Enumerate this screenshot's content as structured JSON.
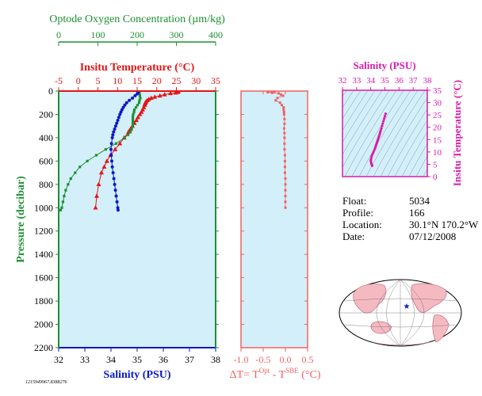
{
  "float_info": {
    "float_label": "Float:",
    "float_value": "5034",
    "profile_label": "Profile:",
    "profile_value": "166",
    "location_label": "Location:",
    "location_value": "30.1°N  170.2°W",
    "date_label": "Date:",
    "date_value": "07/12/2008"
  },
  "footnote": "1215949967.8388276",
  "colors": {
    "panel_bg": "#d3eff9",
    "temperature": "#e41414",
    "oxygen": "#1e9032",
    "salinity": "#0b1ac8",
    "delta_t": "#f26262",
    "ts": "#d81ba8",
    "land": "#f5b9c2"
  },
  "chart_data": [
    {
      "type": "scatter",
      "title": "",
      "ylabel": "Pressure (decibar)",
      "ylim": [
        0,
        2200
      ],
      "yticks": [
        0,
        200,
        400,
        600,
        800,
        1000,
        1200,
        1400,
        1600,
        1800,
        2000,
        2200
      ],
      "axes": {
        "oxygen": {
          "label": "Optode Oxygen Concentration (µm/kg)",
          "range": [
            0,
            400
          ],
          "ticks": [
            0,
            100,
            200,
            300,
            400
          ]
        },
        "temperature": {
          "label": "Insitu Temperature (°C)",
          "range": [
            -5,
            35
          ],
          "ticks": [
            -5,
            0,
            5,
            10,
            15,
            20,
            25,
            30,
            35
          ]
        },
        "salinity": {
          "label": "Salinity (PSU)",
          "range": [
            32,
            38
          ],
          "ticks": [
            32,
            33,
            34,
            35,
            36,
            37,
            38
          ]
        }
      },
      "series": [
        {
          "key": "temperature",
          "marker": "triangle",
          "pressure": [
            5,
            10,
            15,
            20,
            30,
            40,
            50,
            60,
            70,
            80,
            90,
            100,
            110,
            120,
            140,
            160,
            180,
            200,
            225,
            250,
            275,
            300,
            325,
            350,
            400,
            450,
            500,
            550,
            600,
            650,
            700,
            800,
            900,
            1000
          ],
          "values": [
            25.5,
            25.3,
            24.8,
            23.5,
            22.0,
            20.8,
            19.5,
            18.6,
            18.0,
            17.6,
            17.3,
            17.1,
            17.0,
            16.9,
            16.7,
            16.4,
            16.1,
            15.7,
            15.2,
            14.8,
            14.3,
            13.8,
            13.3,
            12.8,
            11.7,
            10.6,
            9.4,
            8.2,
            7.3,
            6.6,
            5.9,
            5.2,
            4.7,
            4.4
          ]
        },
        {
          "key": "oxygen",
          "marker": "square",
          "pressure": [
            5,
            20,
            40,
            60,
            80,
            100,
            120,
            140,
            160,
            180,
            200,
            220,
            240,
            260,
            280,
            300,
            325,
            350,
            375,
            400,
            450,
            500,
            550,
            600,
            650,
            700,
            750,
            800,
            850,
            900,
            950,
            1000,
            1020
          ],
          "values": [
            205,
            206,
            207,
            208,
            206,
            205,
            201,
            197,
            193,
            192,
            190,
            189,
            189,
            189,
            189,
            189,
            186,
            183,
            177,
            168,
            146,
            120,
            96,
            73,
            54,
            42,
            31,
            24,
            18,
            14,
            11,
            8,
            5
          ]
        },
        {
          "key": "salinity",
          "marker": "circle",
          "pressure": [
            5,
            15,
            25,
            40,
            60,
            80,
            100,
            120,
            140,
            160,
            180,
            200,
            225,
            250,
            275,
            300,
            325,
            350,
            375,
            400,
            450,
            500,
            550,
            600,
            650,
            700,
            750,
            800,
            850,
            900,
            950,
            1000,
            1020
          ],
          "values": [
            35.05,
            35.03,
            35.0,
            34.92,
            34.82,
            34.7,
            34.6,
            34.53,
            34.47,
            34.42,
            34.38,
            34.34,
            34.3,
            34.26,
            34.22,
            34.18,
            34.14,
            34.1,
            34.07,
            34.05,
            34.02,
            34.0,
            34.01,
            34.03,
            34.05,
            34.08,
            34.11,
            34.14,
            34.17,
            34.2,
            34.23,
            34.26,
            34.27
          ]
        }
      ]
    },
    {
      "type": "scatter",
      "xlabel": "ΔT= T",
      "xlabel_sup1": "Opt",
      "xlabel_mid": " - T",
      "xlabel_sup2": "SBE",
      "xlabel_tail": " (°C)",
      "xlim": [
        -1.0,
        0.5
      ],
      "xticks": [
        "-1.0",
        "-0.5",
        "0.0",
        "0.5"
      ],
      "ylim": [
        0,
        2200
      ],
      "pressure": [
        5,
        10,
        15,
        20,
        30,
        40,
        60,
        80,
        100,
        120,
        140,
        160,
        180,
        200,
        240,
        280,
        320,
        360,
        400,
        450,
        500,
        550,
        600,
        650,
        700,
        750,
        800,
        850,
        900,
        950,
        1000
      ],
      "values": [
        -0.25,
        -0.4,
        -0.3,
        -0.15,
        -0.1,
        -0.05,
        -0.18,
        -0.22,
        -0.12,
        -0.08,
        -0.04,
        -0.04,
        -0.03,
        -0.03,
        -0.02,
        -0.02,
        -0.03,
        -0.02,
        -0.02,
        -0.02,
        -0.02,
        -0.01,
        -0.01,
        -0.01,
        -0.01,
        0.0,
        0.0,
        0.0,
        0.0,
        0.0,
        0.0
      ]
    },
    {
      "type": "scatter",
      "xlabel": "Salinity (PSU)",
      "ylabel": "Insitu Temperature (°C)",
      "xlim": [
        32,
        38
      ],
      "ylim": [
        0,
        35
      ],
      "xticks": [
        32,
        33,
        34,
        35,
        36,
        37,
        38
      ],
      "yticks": [
        0,
        5,
        10,
        15,
        20,
        25,
        30,
        35
      ],
      "salinity": [
        35.05,
        35.0,
        34.95,
        34.9,
        34.85,
        34.8,
        34.75,
        34.7,
        34.66,
        34.62,
        34.58,
        34.54,
        34.5,
        34.46,
        34.42,
        34.38,
        34.34,
        34.3,
        34.24,
        34.18,
        34.12,
        34.06,
        34.03,
        34.0,
        34.02,
        34.05,
        34.08,
        34.1
      ],
      "temperature": [
        25.5,
        24.5,
        23.5,
        22.5,
        21.5,
        20.5,
        19.5,
        18.6,
        17.8,
        17.0,
        16.3,
        15.6,
        14.9,
        14.2,
        13.5,
        12.8,
        12.1,
        11.4,
        10.6,
        9.8,
        9.0,
        8.2,
        7.3,
        6.6,
        5.9,
        5.2,
        4.7,
        4.4
      ]
    }
  ]
}
